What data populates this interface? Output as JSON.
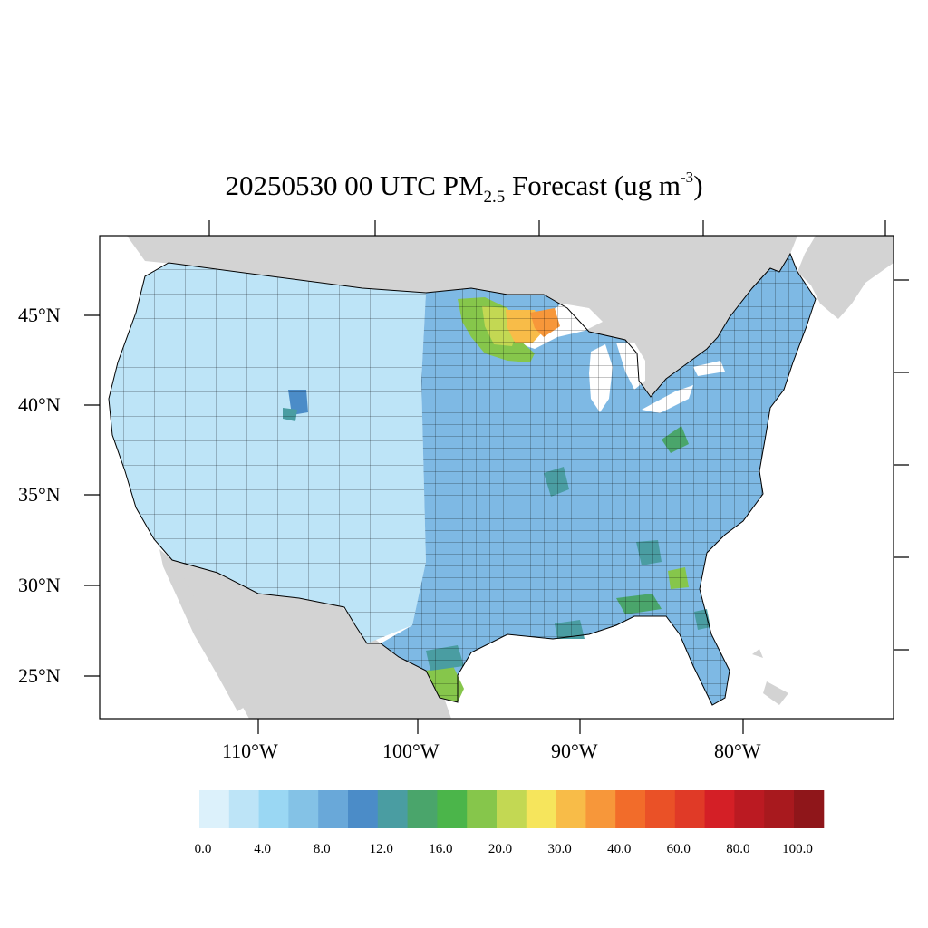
{
  "title": {
    "main": "20250530 00 UTC PM",
    "sub": "2.5",
    "mid": " Forecast (ug m",
    "sup": "-3",
    "end": ")"
  },
  "axes": {
    "lat_labels": [
      "45°N",
      "40°N",
      "35°N",
      "30°N",
      "25°N"
    ],
    "lon_labels": [
      "110°W",
      "100°W",
      "90°W",
      "80°W"
    ]
  },
  "colorbar": {
    "labels": [
      "0.0",
      "4.0",
      "8.0",
      "12.0",
      "16.0",
      "20.0",
      "30.0",
      "40.0",
      "60.0",
      "80.0",
      "100.0"
    ],
    "colors": [
      "#dcf1fb",
      "#bde4f7",
      "#9ad7f3",
      "#84c2e6",
      "#69a8d9",
      "#4b8cc8",
      "#4a9da2",
      "#4aa56b",
      "#4bb54a",
      "#86c64b",
      "#c3d853",
      "#f6e55c",
      "#f8bc48",
      "#f7973a",
      "#f26c2a",
      "#ea5127",
      "#e03a27",
      "#d41f26",
      "#bb1a22",
      "#a8191e",
      "#8f161a"
    ]
  },
  "colors": {
    "ocean": "#ffffff",
    "land_outside": "#d3d3d3",
    "conus_base": "#7eb9e4",
    "west_base": "#bde4f7",
    "border": "#000000"
  }
}
